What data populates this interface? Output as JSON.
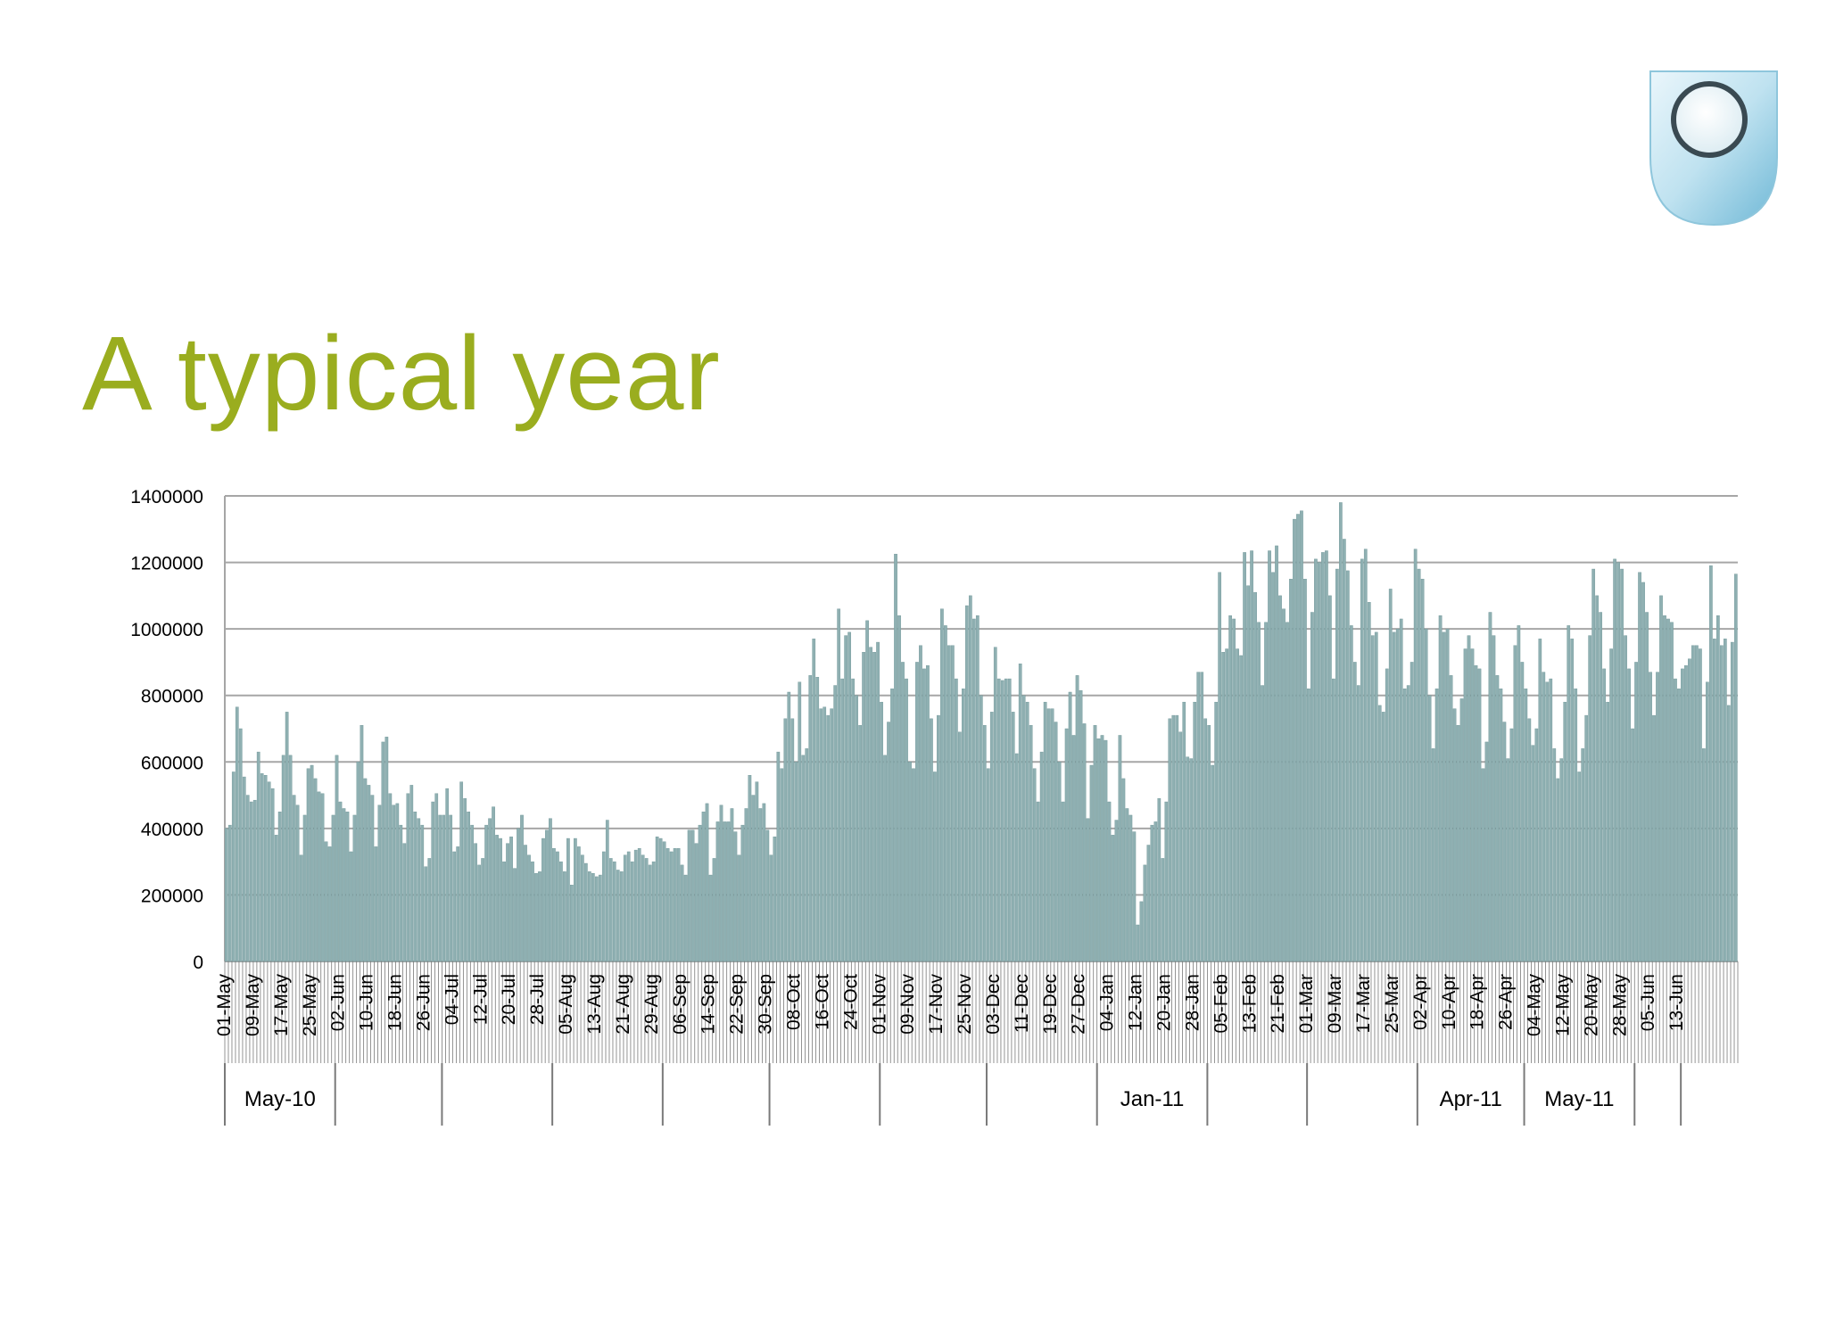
{
  "title": "A typical year",
  "logo_icon": "open-university-shield-icon",
  "colors": {
    "title": "#9aad1f",
    "bar": "#8fb0b2",
    "grid": "#a6a6a6"
  },
  "chart_data": {
    "type": "bar",
    "title": "",
    "xlabel": "",
    "ylabel": "",
    "ylim": [
      0,
      1400000
    ],
    "grid": true,
    "y_ticks": [
      "0",
      "200000",
      "400000",
      "600000",
      "800000",
      "1000000",
      "1200000",
      "1400000"
    ],
    "x_tick_labels": [
      "01-May",
      "09-May",
      "17-May",
      "25-May",
      "02-Jun",
      "10-Jun",
      "18-Jun",
      "26-Jun",
      "04-Jul",
      "12-Jul",
      "20-Jul",
      "28-Jul",
      "05-Aug",
      "13-Aug",
      "21-Aug",
      "29-Aug",
      "06-Sep",
      "14-Sep",
      "22-Sep",
      "30-Sep",
      "08-Oct",
      "16-Oct",
      "24-Oct",
      "01-Nov",
      "09-Nov",
      "17-Nov",
      "25-Nov",
      "03-Dec",
      "11-Dec",
      "19-Dec",
      "27-Dec",
      "04-Jan",
      "12-Jan",
      "20-Jan",
      "28-Jan",
      "05-Feb",
      "13-Feb",
      "21-Feb",
      "01-Mar",
      "09-Mar",
      "17-Mar",
      "25-Mar",
      "02-Apr",
      "10-Apr",
      "18-Apr",
      "26-Apr",
      "04-May",
      "12-May",
      "20-May",
      "28-May",
      "05-Jun",
      "13-Jun"
    ],
    "month_groups": [
      {
        "label": "May-10",
        "days": 31
      },
      {
        "label": "",
        "days": 30
      },
      {
        "label": "",
        "days": 31
      },
      {
        "label": "",
        "days": 31
      },
      {
        "label": "",
        "days": 30
      },
      {
        "label": "",
        "days": 31
      },
      {
        "label": "",
        "days": 30
      },
      {
        "label": "",
        "days": 31
      },
      {
        "label": "Jan-11",
        "days": 31
      },
      {
        "label": "",
        "days": 28
      },
      {
        "label": "",
        "days": 31
      },
      {
        "label": "Apr-11",
        "days": 30
      },
      {
        "label": "May-11",
        "days": 31
      },
      {
        "label": "",
        "days": 13
      }
    ],
    "series": [
      {
        "values": [
          400000,
          410000,
          570000,
          765000,
          700000,
          555000,
          500000,
          480000,
          485000,
          630000,
          565000,
          560000,
          540000,
          520000,
          380000,
          450000,
          620000,
          750000,
          620000,
          500000,
          470000,
          320000,
          440000,
          580000,
          590000,
          550000,
          510000,
          505000,
          360000,
          345000,
          440000,
          620000,
          480000,
          460000,
          450000,
          330000,
          440000,
          600000,
          710000,
          550000,
          530000,
          500000,
          345000,
          470000,
          660000,
          675000,
          505000,
          470000,
          475000,
          410000,
          355000,
          505000,
          530000,
          450000,
          430000,
          410000,
          285000,
          310000,
          480000,
          505000,
          440000,
          440000,
          520000,
          440000,
          330000,
          345000,
          540000,
          490000,
          450000,
          410000,
          355000,
          290000,
          310000,
          410000,
          430000,
          465000,
          380000,
          370000,
          300000,
          355000,
          375000,
          280000,
          400000,
          440000,
          350000,
          320000,
          300000,
          265000,
          270000,
          370000,
          395000,
          430000,
          340000,
          330000,
          300000,
          270000,
          370000,
          230000,
          370000,
          345000,
          320000,
          295000,
          270000,
          265000,
          255000,
          260000,
          330000,
          425000,
          310000,
          300000,
          275000,
          270000,
          320000,
          330000,
          300000,
          335000,
          340000,
          320000,
          310000,
          290000,
          300000,
          375000,
          370000,
          360000,
          340000,
          330000,
          340000,
          340000,
          290000,
          260000,
          395000,
          395000,
          355000,
          410000,
          450000,
          475000,
          260000,
          310000,
          420000,
          470000,
          420000,
          420000,
          460000,
          390000,
          320000,
          410000,
          460000,
          560000,
          500000,
          540000,
          460000,
          475000,
          395000,
          320000,
          375000,
          630000,
          580000,
          730000,
          810000,
          730000,
          600000,
          840000,
          620000,
          640000,
          860000,
          970000,
          855000,
          760000,
          765000,
          740000,
          760000,
          830000,
          1060000,
          850000,
          980000,
          990000,
          850000,
          800000,
          710000,
          930000,
          1025000,
          945000,
          930000,
          960000,
          780000,
          620000,
          720000,
          820000,
          1225000,
          1040000,
          900000,
          850000,
          600000,
          580000,
          900000,
          950000,
          880000,
          890000,
          730000,
          570000,
          740000,
          1060000,
          1010000,
          950000,
          950000,
          850000,
          690000,
          820000,
          1070000,
          1100000,
          1030000,
          1040000,
          800000,
          710000,
          580000,
          750000,
          945000,
          850000,
          845000,
          850000,
          850000,
          750000,
          625000,
          895000,
          800000,
          780000,
          710000,
          580000,
          480000,
          630000,
          780000,
          760000,
          760000,
          720000,
          600000,
          480000,
          700000,
          810000,
          680000,
          860000,
          815000,
          715000,
          430000,
          590000,
          710000,
          670000,
          680000,
          665000,
          480000,
          380000,
          425000,
          680000,
          550000,
          460000,
          440000,
          390000,
          110000,
          180000,
          290000,
          350000,
          410000,
          420000,
          490000,
          310000,
          480000,
          730000,
          740000,
          740000,
          690000,
          780000,
          615000,
          610000,
          780000,
          870000,
          870000,
          730000,
          710000,
          590000,
          780000,
          1170000,
          930000,
          940000,
          1040000,
          1030000,
          940000,
          920000,
          1230000,
          1130000,
          1235000,
          1110000,
          1020000,
          830000,
          1020000,
          1235000,
          1170000,
          1250000,
          1100000,
          1060000,
          1020000,
          1150000,
          1330000,
          1345000,
          1355000,
          1150000,
          820000,
          1050000,
          1210000,
          1200000,
          1230000,
          1235000,
          1100000,
          850000,
          1180000,
          1380000,
          1270000,
          1175000,
          1010000,
          900000,
          830000,
          1210000,
          1240000,
          1080000,
          980000,
          990000,
          770000,
          750000,
          880000,
          1120000,
          990000,
          1000000,
          1030000,
          820000,
          830000,
          900000,
          1240000,
          1180000,
          1150000,
          1000000,
          800000,
          640000,
          820000,
          1040000,
          990000,
          1000000,
          860000,
          760000,
          710000,
          790000,
          940000,
          980000,
          940000,
          890000,
          880000,
          580000,
          660000,
          1050000,
          980000,
          860000,
          820000,
          720000,
          610000,
          700000,
          950000,
          1010000,
          900000,
          820000,
          730000,
          650000,
          700000,
          970000,
          870000,
          840000,
          850000,
          640000,
          550000,
          610000,
          780000,
          1010000,
          970000,
          820000,
          570000,
          640000,
          740000,
          980000,
          1180000,
          1100000,
          1050000,
          880000,
          780000,
          940000,
          1210000,
          1200000,
          1180000,
          980000,
          880000,
          700000,
          900000,
          1170000,
          1140000,
          1050000,
          870000,
          740000,
          870000,
          1100000,
          1040000,
          1030000,
          1020000,
          850000,
          820000,
          880000,
          890000,
          910000,
          950000,
          950000,
          940000,
          640000,
          840000,
          1190000,
          970000,
          1040000,
          950000,
          970000,
          770000,
          960000,
          1165000
        ]
      }
    ]
  }
}
